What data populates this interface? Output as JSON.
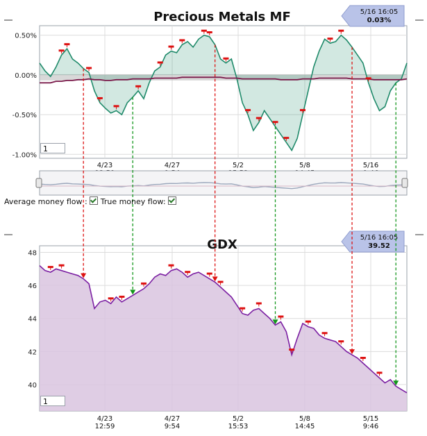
{
  "chart_data": [
    {
      "type": "line",
      "title": "Precious Metals MF",
      "y_ticks": [
        "0.50%",
        "0.00%",
        "-0.50%",
        "-1.00%"
      ],
      "ylim": [
        -1.05,
        0.62
      ],
      "x_ticks": [
        {
          "date": "4/23",
          "time": "12:59"
        },
        {
          "date": "4/27",
          "time": "9:54"
        },
        {
          "date": "5/2",
          "time": "15:53"
        },
        {
          "date": "5/8",
          "time": "14:45"
        },
        {
          "date": "5/15",
          "time": "9:46"
        }
      ],
      "x_ticks_top": [
        {
          "date": "4/23",
          "time": "12:59"
        },
        {
          "date": "4/27",
          "time": "9:54"
        },
        {
          "date": "5/2",
          "time": "15:53"
        },
        {
          "date": "5/8",
          "time": "14:45"
        },
        {
          "date": "5/16",
          "time": "9:46"
        }
      ],
      "callout": {
        "date": "5/16 16:05",
        "value": "0.03%"
      },
      "input_value": "1",
      "series": [
        {
          "name": "True money flow",
          "color": "#1f8a6a",
          "values": [
            0.15,
            0.05,
            -0.02,
            0.1,
            0.25,
            0.33,
            0.2,
            0.15,
            0.08,
            0.03,
            -0.2,
            -0.35,
            -0.42,
            -0.48,
            -0.45,
            -0.5,
            -0.35,
            -0.28,
            -0.2,
            -0.3,
            -0.1,
            0.05,
            0.1,
            0.25,
            0.3,
            0.28,
            0.38,
            0.42,
            0.35,
            0.45,
            0.5,
            0.48,
            0.38,
            0.2,
            0.15,
            0.2,
            -0.05,
            -0.35,
            -0.5,
            -0.7,
            -0.6,
            -0.45,
            -0.55,
            -0.65,
            -0.75,
            -0.85,
            -0.95,
            -0.8,
            -0.5,
            -0.2,
            0.1,
            0.3,
            0.45,
            0.4,
            0.42,
            0.5,
            0.44,
            0.35,
            0.25,
            0.15,
            -0.1,
            -0.3,
            -0.45,
            -0.4,
            -0.2,
            -0.1,
            -0.05,
            0.15
          ]
        },
        {
          "name": "Average money flow",
          "color": "#7a1a4a",
          "values": [
            -0.1,
            -0.1,
            -0.1,
            -0.08,
            -0.08,
            -0.07,
            -0.07,
            -0.06,
            -0.06,
            -0.05,
            -0.06,
            -0.06,
            -0.07,
            -0.07,
            -0.06,
            -0.06,
            -0.06,
            -0.05,
            -0.05,
            -0.05,
            -0.05,
            -0.04,
            -0.04,
            -0.04,
            -0.04,
            -0.04,
            -0.03,
            -0.03,
            -0.03,
            -0.03,
            -0.03,
            -0.03,
            -0.03,
            -0.03,
            -0.04,
            -0.04,
            -0.04,
            -0.05,
            -0.05,
            -0.05,
            -0.05,
            -0.05,
            -0.05,
            -0.05,
            -0.06,
            -0.06,
            -0.06,
            -0.06,
            -0.05,
            -0.05,
            -0.05,
            -0.04,
            -0.04,
            -0.04,
            -0.04,
            -0.04,
            -0.04,
            -0.05,
            -0.05,
            -0.05,
            -0.05,
            -0.06,
            -0.06,
            -0.06,
            -0.06,
            -0.06,
            -0.06,
            -0.05
          ]
        }
      ]
    },
    {
      "type": "area",
      "title": "GDX",
      "y_ticks": [
        "48",
        "46",
        "44",
        "42",
        "40"
      ],
      "ylim": [
        38.4,
        48.4
      ],
      "x_ticks": [
        {
          "date": "4/23",
          "time": "12:59"
        },
        {
          "date": "4/27",
          "time": "9:54"
        },
        {
          "date": "5/2",
          "time": "15:53"
        },
        {
          "date": "5/8",
          "time": "14:45"
        },
        {
          "date": "5/15",
          "time": "9:46"
        }
      ],
      "callout": {
        "date": "5/16 16:05",
        "value": "39.52"
      },
      "input_value": "1",
      "series": [
        {
          "name": "GDX",
          "color": "#7b1fa2",
          "values": [
            47.2,
            46.9,
            46.8,
            47.0,
            46.9,
            46.8,
            46.7,
            46.6,
            46.4,
            46.1,
            44.6,
            45.0,
            45.1,
            44.9,
            45.3,
            45.0,
            45.2,
            45.4,
            45.6,
            45.8,
            46.1,
            46.5,
            46.7,
            46.6,
            46.9,
            47.0,
            46.8,
            46.5,
            46.7,
            46.8,
            46.6,
            46.4,
            46.2,
            45.9,
            45.6,
            45.3,
            44.8,
            44.3,
            44.2,
            44.5,
            44.6,
            44.3,
            44.0,
            43.6,
            43.8,
            43.2,
            41.8,
            42.8,
            43.7,
            43.5,
            43.4,
            43.0,
            42.8,
            42.7,
            42.6,
            42.3,
            42.0,
            41.8,
            41.6,
            41.3,
            41.0,
            40.7,
            40.4,
            40.1,
            40.3,
            39.9,
            39.7,
            39.5
          ]
        }
      ]
    }
  ],
  "ui": {
    "average_money_flow_label": "Average money flow :",
    "true_money_flow_label": "True money flow:",
    "average_money_flow_checked": true,
    "true_money_flow_checked": true
  },
  "signals": [
    {
      "type": "sell",
      "color": "#dd1111"
    },
    {
      "type": "buy",
      "color": "#11961a"
    },
    {
      "type": "sell",
      "color": "#dd1111"
    },
    {
      "type": "buy",
      "color": "#11961a"
    },
    {
      "type": "sell",
      "color": "#dd1111"
    },
    {
      "type": "buy",
      "color": "#11961a"
    }
  ],
  "colors": {
    "panel_bg": "#ffffff",
    "grid": "#d8d8d8",
    "callout": "#b9c3e8"
  }
}
